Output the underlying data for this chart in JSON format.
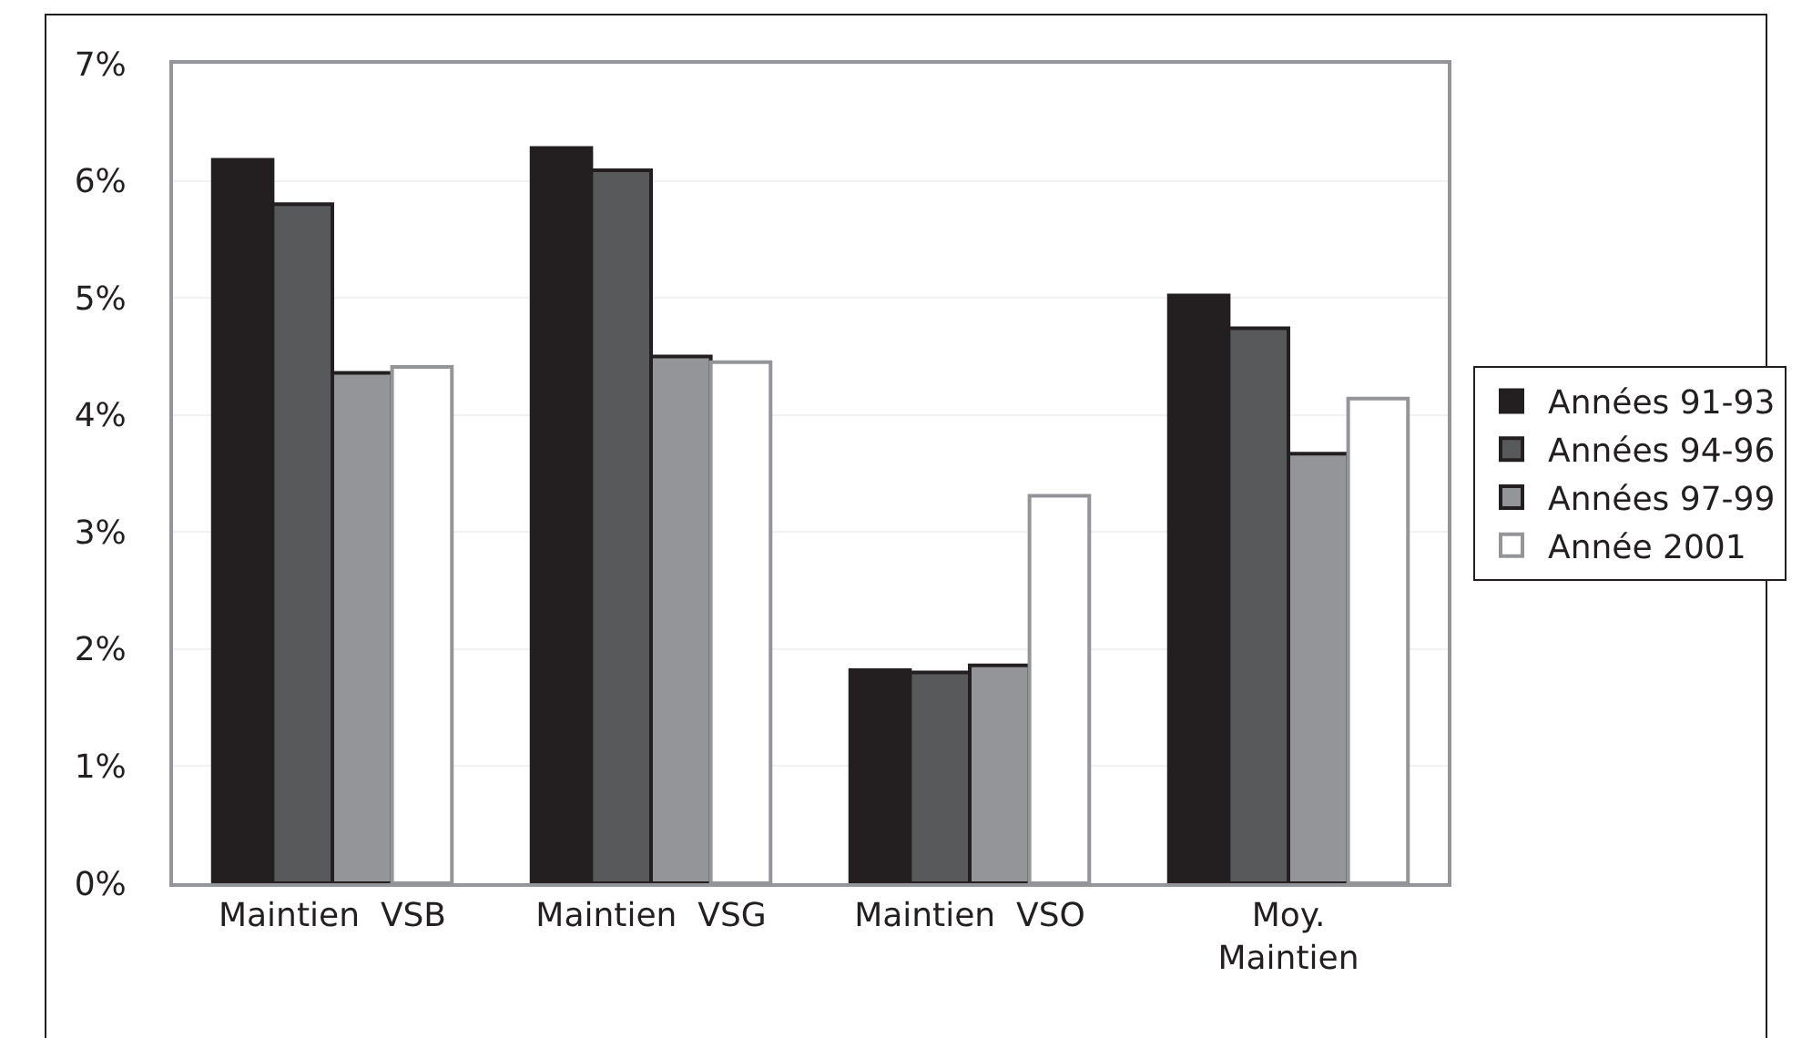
{
  "chart_data": {
    "type": "bar",
    "categories": [
      "Maintien  VSB",
      "Maintien  VSG",
      "Maintien  VSO",
      "Moy.\nMaintien"
    ],
    "series": [
      {
        "name": "Années 91-93",
        "color": "#231f20",
        "values": [
          6.18,
          6.28,
          1.82,
          5.02
        ]
      },
      {
        "name": "Années 94-96",
        "color": "#58595b",
        "values": [
          5.8,
          6.09,
          1.8,
          4.74
        ]
      },
      {
        "name": "Années 97-99",
        "color": "#939598",
        "values": [
          4.36,
          4.5,
          1.86,
          3.67
        ]
      },
      {
        "name": "Année 2001",
        "color": "#ffffff",
        "values": [
          4.41,
          4.45,
          3.31,
          4.14
        ]
      }
    ],
    "ylim": [
      0,
      7
    ],
    "yticks": [
      {
        "value": 0,
        "label": "0%"
      },
      {
        "value": 1,
        "label": "1%"
      },
      {
        "value": 2,
        "label": "2%"
      },
      {
        "value": 3,
        "label": "3%"
      },
      {
        "value": 4,
        "label": "4%"
      },
      {
        "value": 5,
        "label": "5%"
      },
      {
        "value": 6,
        "label": "6%"
      },
      {
        "value": 7,
        "label": "7%"
      }
    ],
    "grid": "y",
    "legend": "right"
  }
}
